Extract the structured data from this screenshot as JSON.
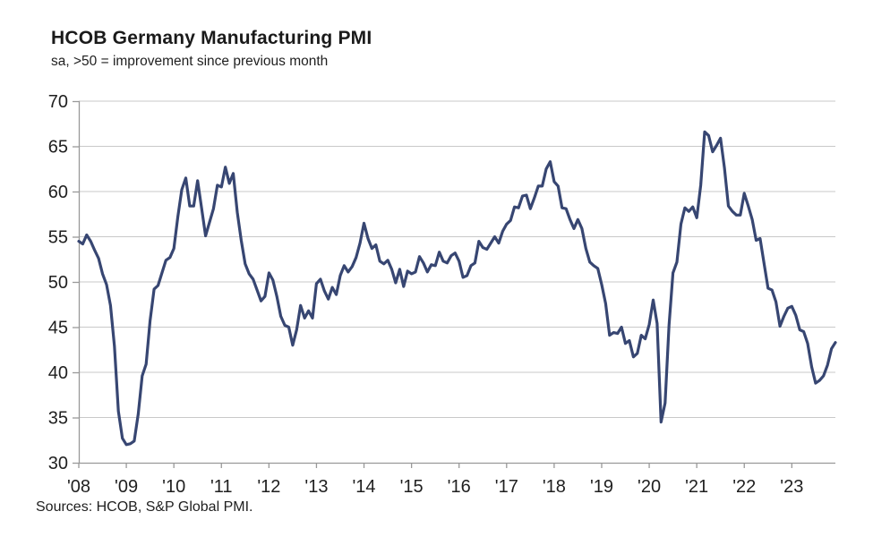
{
  "header": {
    "title": "HCOB Germany Manufacturing PMI",
    "subtitle": "sa, >50 = improvement since previous month"
  },
  "footer": {
    "source": "Sources: HCOB, S&P Global PMI."
  },
  "chart_data": {
    "type": "line",
    "title": "HCOB Germany Manufacturing PMI",
    "subtitle": "sa, >50 = improvement since previous month",
    "source": "Sources: HCOB, S&P Global PMI.",
    "grid": true,
    "legend_position": "none",
    "ylim": [
      30,
      70
    ],
    "yticks": [
      30,
      35,
      40,
      45,
      50,
      55,
      60,
      65,
      70
    ],
    "x_tick_labels": [
      "'08",
      "'09",
      "'10",
      "'11",
      "'12",
      "'13",
      "'14",
      "'15",
      "'16",
      "'17",
      "'18",
      "'19",
      "'20",
      "'21",
      "'22",
      "'23"
    ],
    "months_per_tick": 12,
    "colors": {
      "line": "#374672",
      "grid": "#c9c9c9",
      "axis": "#999999",
      "text": "#1f1f1f"
    },
    "series": [
      {
        "name": "HCOB Germany Manufacturing PMI (sa)",
        "frequency": "monthly",
        "start": "2008-01",
        "values": [
          54.5,
          54.2,
          55.2,
          54.5,
          53.5,
          52.6,
          50.9,
          49.7,
          47.4,
          42.9,
          35.7,
          32.7,
          32.0,
          32.1,
          32.4,
          35.4,
          39.6,
          40.9,
          45.7,
          49.2,
          49.6,
          51.0,
          52.4,
          52.7,
          53.7,
          57.2,
          60.2,
          61.5,
          58.4,
          58.4,
          61.2,
          58.2,
          55.1,
          56.6,
          58.1,
          60.7,
          60.5,
          62.7,
          60.9,
          62.0,
          57.7,
          54.6,
          52.0,
          50.9,
          50.3,
          49.1,
          47.9,
          48.4,
          51.0,
          50.2,
          48.4,
          46.2,
          45.2,
          45.0,
          43.0,
          44.7,
          47.4,
          46.0,
          46.8,
          46.0,
          49.8,
          50.3,
          49.0,
          48.1,
          49.4,
          48.6,
          50.7,
          51.8,
          51.1,
          51.7,
          52.7,
          54.3,
          56.5,
          54.8,
          53.7,
          54.1,
          52.3,
          52.0,
          52.4,
          51.4,
          49.9,
          51.4,
          49.5,
          51.2,
          50.9,
          51.1,
          52.8,
          52.1,
          51.1,
          51.9,
          51.8,
          53.3,
          52.3,
          52.1,
          52.9,
          53.2,
          52.3,
          50.5,
          50.7,
          51.8,
          52.1,
          54.5,
          53.8,
          53.6,
          54.3,
          55.0,
          54.3,
          55.6,
          56.4,
          56.8,
          58.3,
          58.2,
          59.5,
          59.6,
          58.1,
          59.3,
          60.6,
          60.6,
          62.5,
          63.3,
          61.1,
          60.6,
          58.2,
          58.1,
          56.9,
          55.9,
          56.9,
          55.9,
          53.7,
          52.2,
          51.8,
          51.5,
          49.7,
          47.6,
          44.1,
          44.4,
          44.3,
          45.0,
          43.2,
          43.5,
          41.7,
          42.1,
          44.1,
          43.7,
          45.3,
          48.0,
          45.4,
          34.5,
          36.6,
          45.2,
          51.0,
          52.2,
          56.4,
          58.2,
          57.8,
          58.3,
          57.1,
          60.7,
          66.6,
          66.2,
          64.4,
          65.1,
          65.9,
          62.6,
          58.4,
          57.8,
          57.4,
          57.4,
          59.8,
          58.4,
          56.9,
          54.6,
          54.8,
          52.0,
          49.3,
          49.1,
          47.8,
          45.1,
          46.2,
          47.1,
          47.3,
          46.3,
          44.7,
          44.5,
          43.2,
          40.6,
          38.8,
          39.1,
          39.6,
          40.8,
          42.6,
          43.3
        ]
      }
    ]
  }
}
